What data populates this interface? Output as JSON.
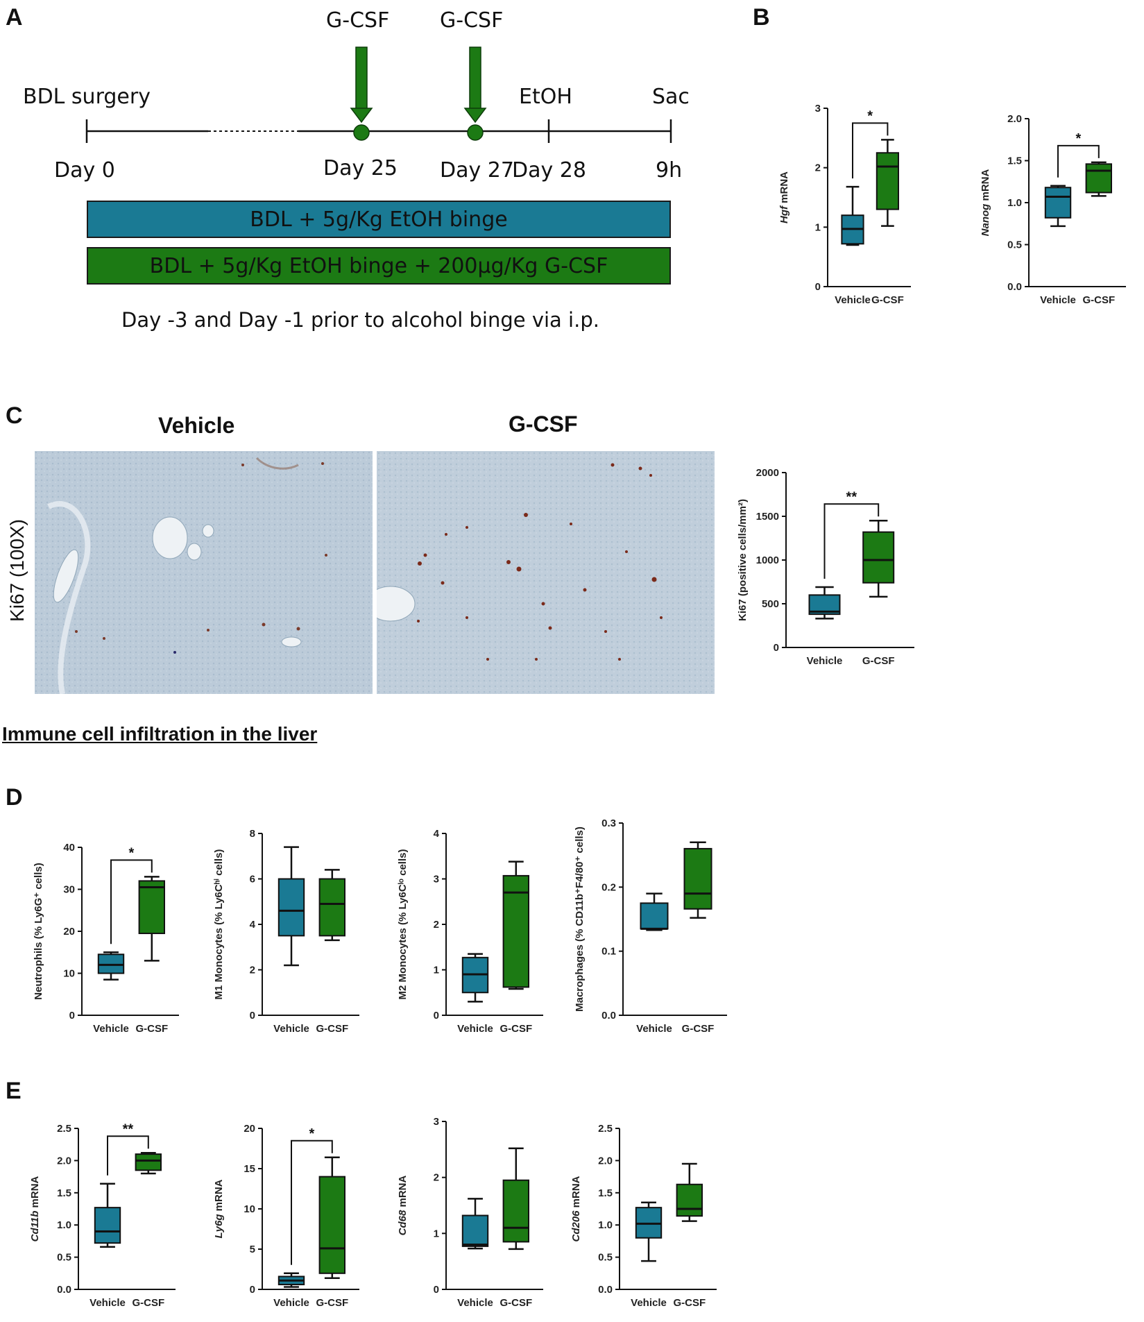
{
  "panels": {
    "A": "A",
    "B": "B",
    "C": "C",
    "D": "D",
    "E": "E"
  },
  "timeline": {
    "start_label": "BDL surgery",
    "gcsf_label_1": "G-CSF",
    "gcsf_label_2": "G-CSF",
    "etoh_label": "EtOH",
    "sac_label": "Sac",
    "day0": "Day 0",
    "day25": "Day 25",
    "day27": "Day 27",
    "day28": "Day 28",
    "end": "9h",
    "bar_vehicle": "BDL + 5g/Kg EtOH binge",
    "bar_gcsf": "BDL + 5g/Kg EtOH binge + 200µg/Kg G-CSF",
    "legend": "Day -3 and Day -1 prior to alcohol binge via i.p.",
    "color_vehicle": "#1a7a94",
    "color_gcsf": "#1c7a14"
  },
  "micrographs": {
    "vehicle_title": "Vehicle",
    "gcsf_title": "G-CSF",
    "row_label": "Ki67 (100X)"
  },
  "section_title": "Immune cell infiltration in the liver",
  "chart_data": [
    {
      "id": "hgf",
      "type": "box",
      "ylabel_italic": "Hgf",
      "ylabel_rest": " mRNA",
      "ylim": [
        0,
        3
      ],
      "yticks": [
        "0",
        "1",
        "2",
        "3"
      ],
      "categories": [
        "Vehicle",
        "G-CSF"
      ],
      "significance": "*",
      "boxes": [
        {
          "min": 0.7,
          "q1": 0.72,
          "median": 0.97,
          "q3": 1.2,
          "max": 1.68
        },
        {
          "min": 1.02,
          "q1": 1.3,
          "median": 2.02,
          "q3": 2.25,
          "max": 2.47
        }
      ]
    },
    {
      "id": "nanog",
      "type": "box",
      "ylabel_italic": "Nanog",
      "ylabel_rest": " mRNA",
      "ylim": [
        0,
        2
      ],
      "yticks": [
        "0.0",
        "0.5",
        "1.0",
        "1.5",
        "2.0"
      ],
      "categories": [
        "Vehicle",
        "G-CSF"
      ],
      "significance": "*",
      "boxes": [
        {
          "min": 0.72,
          "q1": 0.82,
          "median": 1.07,
          "q3": 1.18,
          "max": 1.2
        },
        {
          "min": 1.08,
          "q1": 1.12,
          "median": 1.38,
          "q3": 1.46,
          "max": 1.48
        }
      ]
    },
    {
      "id": "ki67",
      "type": "box",
      "ylabel_italic": "",
      "ylabel_rest": "Ki67 (positive cells/mm²)",
      "ylim": [
        0,
        2000
      ],
      "yticks": [
        "0",
        "500",
        "1000",
        "1500",
        "2000"
      ],
      "categories": [
        "Vehicle",
        "G-CSF"
      ],
      "significance": "**",
      "boxes": [
        {
          "min": 330,
          "q1": 380,
          "median": 410,
          "q3": 600,
          "max": 690
        },
        {
          "min": 580,
          "q1": 740,
          "median": 1000,
          "q3": 1320,
          "max": 1450
        }
      ]
    },
    {
      "id": "neutrophils",
      "type": "box",
      "ylabel_italic": "",
      "ylabel_rest": "Neutrophils (% Ly6G⁺ cells)",
      "ylim": [
        0,
        40
      ],
      "yticks": [
        "0",
        "10",
        "20",
        "30",
        "40"
      ],
      "categories": [
        "Vehicle",
        "G-CSF"
      ],
      "significance": "*",
      "boxes": [
        {
          "min": 8.5,
          "q1": 10,
          "median": 12,
          "q3": 14.5,
          "max": 15
        },
        {
          "min": 13,
          "q1": 19.5,
          "median": 30.5,
          "q3": 32,
          "max": 33
        }
      ]
    },
    {
      "id": "m1",
      "type": "box",
      "ylabel_italic": "",
      "ylabel_rest": "M1 Monocytes (% Ly6Cʰⁱ cells)",
      "ylim": [
        0,
        8
      ],
      "yticks": [
        "0",
        "2",
        "4",
        "6",
        "8"
      ],
      "categories": [
        "Vehicle",
        "G-CSF"
      ],
      "significance": "",
      "boxes": [
        {
          "min": 2.2,
          "q1": 3.5,
          "median": 4.6,
          "q3": 6.0,
          "max": 7.4
        },
        {
          "min": 3.3,
          "q1": 3.5,
          "median": 4.9,
          "q3": 6.0,
          "max": 6.4
        }
      ]
    },
    {
      "id": "m2",
      "type": "box",
      "ylabel_italic": "",
      "ylabel_rest": "M2 Monocytes (% Ly6Cˡᵒ cells)",
      "ylim": [
        0,
        4
      ],
      "yticks": [
        "0",
        "1",
        "2",
        "3",
        "4"
      ],
      "categories": [
        "Vehicle",
        "G-CSF"
      ],
      "significance": "",
      "boxes": [
        {
          "min": 0.3,
          "q1": 0.5,
          "median": 0.9,
          "q3": 1.27,
          "max": 1.35
        },
        {
          "min": 0.58,
          "q1": 0.62,
          "median": 2.7,
          "q3": 3.07,
          "max": 3.38
        }
      ]
    },
    {
      "id": "macrophages",
      "type": "box",
      "ylabel_italic": "",
      "ylabel_rest": "Macrophages (% CD11b⁺F4/80⁺ cells)",
      "ylim": [
        0,
        0.3
      ],
      "yticks": [
        "0.0",
        "0.1",
        "0.2",
        "0.3"
      ],
      "categories": [
        "Vehicle",
        "G-CSF"
      ],
      "significance": "",
      "boxes": [
        {
          "min": 0.133,
          "q1": 0.135,
          "median": 0.135,
          "q3": 0.175,
          "max": 0.19
        },
        {
          "min": 0.152,
          "q1": 0.166,
          "median": 0.19,
          "q3": 0.26,
          "max": 0.27
        }
      ]
    },
    {
      "id": "cd11b",
      "type": "box",
      "ylabel_italic": "Cd11b",
      "ylabel_rest": " mRNA",
      "ylim": [
        0,
        2.5
      ],
      "yticks": [
        "0.0",
        "0.5",
        "1.0",
        "1.5",
        "2.0",
        "2.5"
      ],
      "categories": [
        "Vehicle",
        "G-CSF"
      ],
      "significance": "**",
      "boxes": [
        {
          "min": 0.66,
          "q1": 0.72,
          "median": 0.9,
          "q3": 1.27,
          "max": 1.64
        },
        {
          "min": 1.8,
          "q1": 1.85,
          "median": 2.0,
          "q3": 2.1,
          "max": 2.12
        }
      ]
    },
    {
      "id": "ly6g",
      "type": "box",
      "ylabel_italic": "Ly6g",
      "ylabel_rest": " mRNA",
      "ylim": [
        0,
        20
      ],
      "yticks": [
        "0",
        "5",
        "10",
        "15",
        "20"
      ],
      "categories": [
        "Vehicle",
        "G-CSF"
      ],
      "significance": "*",
      "boxes": [
        {
          "min": 0.3,
          "q1": 0.6,
          "median": 1.1,
          "q3": 1.6,
          "max": 2.0
        },
        {
          "min": 1.4,
          "q1": 2.0,
          "median": 5.1,
          "q3": 14.0,
          "max": 16.4
        }
      ]
    },
    {
      "id": "cd68",
      "type": "box",
      "ylabel_italic": "Cd68",
      "ylabel_rest": " mRNA",
      "ylim": [
        0,
        3
      ],
      "yticks": [
        "0",
        "1",
        "2",
        "3"
      ],
      "categories": [
        "Vehicle",
        "G-CSF"
      ],
      "significance": "",
      "boxes": [
        {
          "min": 0.73,
          "q1": 0.77,
          "median": 0.8,
          "q3": 1.32,
          "max": 1.62
        },
        {
          "min": 0.72,
          "q1": 0.85,
          "median": 1.1,
          "q3": 1.95,
          "max": 2.52
        }
      ]
    },
    {
      "id": "cd206",
      "type": "box",
      "ylabel_italic": "Cd206",
      "ylabel_rest": " mRNA",
      "ylim": [
        0,
        2.5
      ],
      "yticks": [
        "0.0",
        "0.5",
        "1.0",
        "1.5",
        "2.0",
        "2.5"
      ],
      "categories": [
        "Vehicle",
        "G-CSF"
      ],
      "significance": "",
      "boxes": [
        {
          "min": 0.44,
          "q1": 0.8,
          "median": 1.02,
          "q3": 1.27,
          "max": 1.35
        },
        {
          "min": 1.06,
          "q1": 1.14,
          "median": 1.25,
          "q3": 1.63,
          "max": 1.95
        }
      ]
    }
  ]
}
